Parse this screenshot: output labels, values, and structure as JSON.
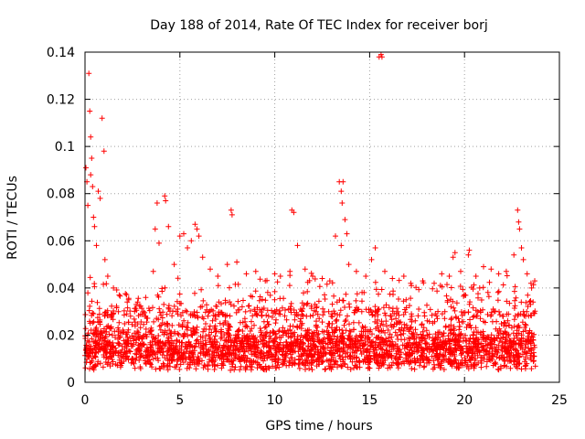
{
  "chart_data": {
    "type": "scatter",
    "title": "Day 188 of 2014, Rate Of TEC Index for receiver borj",
    "xlabel": "GPS time / hours",
    "ylabel": "ROTI / TECUs",
    "xlim": [
      0,
      25
    ],
    "ylim": [
      0,
      0.14
    ],
    "grid": true,
    "x_ticks": [
      0,
      5,
      10,
      15,
      20,
      25
    ],
    "x_tick_labels": [
      "0",
      "5",
      "10",
      "15",
      "20",
      "25"
    ],
    "y_ticks": [
      0,
      0.02,
      0.04,
      0.06,
      0.08,
      0.1,
      0.12,
      0.14
    ],
    "y_tick_labels": [
      "0",
      "0.02",
      "0.04",
      "0.06",
      "0.08",
      "0.1",
      "0.12",
      "0.14"
    ],
    "marker": "+",
    "series": [
      {
        "name": "ROTI",
        "color": "#ff0000",
        "base_band": [
          0.005,
          0.03
        ],
        "time_span": [
          0,
          23.75
        ],
        "points": [
          [
            0.05,
            0.091
          ],
          [
            0.1,
            0.085
          ],
          [
            0.15,
            0.075
          ],
          [
            0.2,
            0.131
          ],
          [
            0.25,
            0.115
          ],
          [
            0.3,
            0.104
          ],
          [
            0.35,
            0.095
          ],
          [
            0.3,
            0.088
          ],
          [
            0.4,
            0.083
          ],
          [
            0.45,
            0.07
          ],
          [
            0.5,
            0.066
          ],
          [
            0.6,
            0.058
          ],
          [
            0.7,
            0.081
          ],
          [
            0.8,
            0.078
          ],
          [
            0.9,
            0.112
          ],
          [
            1.0,
            0.098
          ],
          [
            1.05,
            0.052
          ],
          [
            1.2,
            0.045
          ],
          [
            1.5,
            0.04
          ],
          [
            1.8,
            0.037
          ],
          [
            2.3,
            0.035
          ],
          [
            2.7,
            0.033
          ],
          [
            3.2,
            0.036
          ],
          [
            3.6,
            0.047
          ],
          [
            3.7,
            0.065
          ],
          [
            3.8,
            0.076
          ],
          [
            3.9,
            0.059
          ],
          [
            4.2,
            0.079
          ],
          [
            4.25,
            0.077
          ],
          [
            4.4,
            0.066
          ],
          [
            4.7,
            0.05
          ],
          [
            5.0,
            0.062
          ],
          [
            5.2,
            0.063
          ],
          [
            5.4,
            0.057
          ],
          [
            5.6,
            0.06
          ],
          [
            5.8,
            0.067
          ],
          [
            5.9,
            0.065
          ],
          [
            6.0,
            0.062
          ],
          [
            6.2,
            0.053
          ],
          [
            6.6,
            0.048
          ],
          [
            7.0,
            0.045
          ],
          [
            7.5,
            0.05
          ],
          [
            7.7,
            0.073
          ],
          [
            7.75,
            0.071
          ],
          [
            8.0,
            0.051
          ],
          [
            8.5,
            0.046
          ],
          [
            9.0,
            0.047
          ],
          [
            9.5,
            0.043
          ],
          [
            10.0,
            0.046
          ],
          [
            10.3,
            0.045
          ],
          [
            10.8,
            0.047
          ],
          [
            10.9,
            0.073
          ],
          [
            11.0,
            0.072
          ],
          [
            11.2,
            0.058
          ],
          [
            11.6,
            0.048
          ],
          [
            12.0,
            0.045
          ],
          [
            12.5,
            0.044
          ],
          [
            12.9,
            0.043
          ],
          [
            13.2,
            0.062
          ],
          [
            13.4,
            0.085
          ],
          [
            13.5,
            0.081
          ],
          [
            13.6,
            0.085
          ],
          [
            13.55,
            0.076
          ],
          [
            13.7,
            0.069
          ],
          [
            13.8,
            0.063
          ],
          [
            13.5,
            0.058
          ],
          [
            13.9,
            0.05
          ],
          [
            14.3,
            0.047
          ],
          [
            14.8,
            0.045
          ],
          [
            15.1,
            0.052
          ],
          [
            15.3,
            0.057
          ],
          [
            15.5,
            0.138
          ],
          [
            15.6,
            0.139
          ],
          [
            15.65,
            0.138
          ],
          [
            15.8,
            0.047
          ],
          [
            16.2,
            0.044
          ],
          [
            16.8,
            0.045
          ],
          [
            17.2,
            0.041
          ],
          [
            17.8,
            0.043
          ],
          [
            18.4,
            0.042
          ],
          [
            18.8,
            0.046
          ],
          [
            19.2,
            0.045
          ],
          [
            19.4,
            0.053
          ],
          [
            19.5,
            0.055
          ],
          [
            19.8,
            0.047
          ],
          [
            20.2,
            0.054
          ],
          [
            20.25,
            0.056
          ],
          [
            20.6,
            0.045
          ],
          [
            21.0,
            0.049
          ],
          [
            21.4,
            0.048
          ],
          [
            21.8,
            0.046
          ],
          [
            22.2,
            0.047
          ],
          [
            22.6,
            0.054
          ],
          [
            22.8,
            0.073
          ],
          [
            22.85,
            0.068
          ],
          [
            22.9,
            0.065
          ],
          [
            23.0,
            0.057
          ],
          [
            23.1,
            0.052
          ],
          [
            23.3,
            0.046
          ],
          [
            23.5,
            0.042
          ],
          [
            23.7,
            0.043
          ]
        ]
      }
    ]
  }
}
